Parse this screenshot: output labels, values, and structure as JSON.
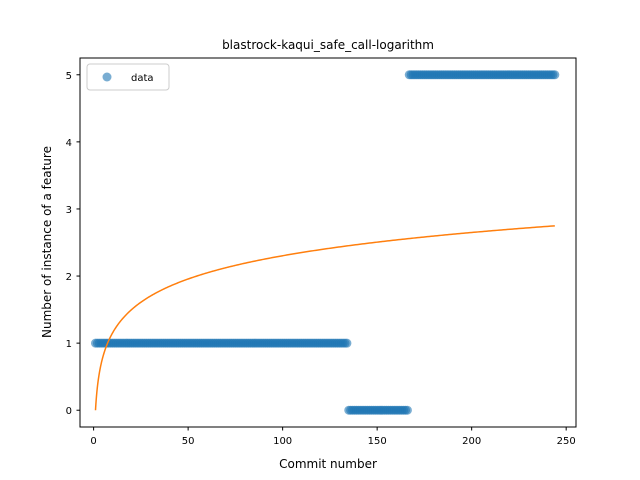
{
  "chart_data": {
    "type": "scatter",
    "title": "blastrock-kaqui_safe_call-logarithm",
    "xlabel": "Commit number",
    "ylabel": "Number of instance of a feature",
    "xlim": [
      -7.2,
      255.2
    ],
    "ylim": [
      -0.25,
      5.25
    ],
    "xticks": [
      0,
      50,
      100,
      150,
      200,
      250
    ],
    "yticks": [
      0,
      1,
      2,
      3,
      4,
      5
    ],
    "grid": false,
    "legend_position": "top-left",
    "series": [
      {
        "name": "data",
        "kind": "scatter",
        "color": "#1f77b4",
        "segments": [
          {
            "x_start": 1,
            "x_end": 134,
            "y": 1
          },
          {
            "x_start": 135,
            "x_end": 166,
            "y": 0
          },
          {
            "x_start": 167,
            "x_end": 244,
            "y": 5
          }
        ]
      },
      {
        "kind": "line",
        "color": "#ff7f0e",
        "model": "y = 0.5 * ln(x)",
        "x_start": 1,
        "x_end": 244
      }
    ]
  }
}
